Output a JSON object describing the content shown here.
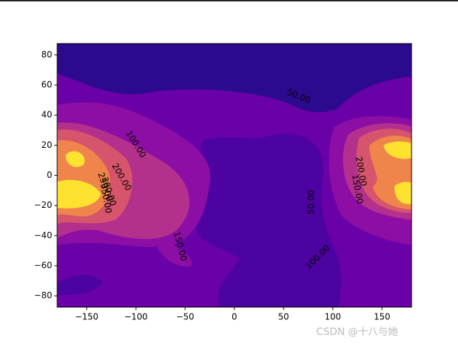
{
  "chart_data": {
    "type": "contourf",
    "xlim": [
      -180,
      180
    ],
    "ylim": [
      -87.5,
      87.5
    ],
    "xticks": [
      {
        "value": -150,
        "label": "−150"
      },
      {
        "value": -100,
        "label": "−100"
      },
      {
        "value": -50,
        "label": "−50"
      },
      0,
      50,
      100,
      150
    ],
    "yticks": [
      {
        "value": -80,
        "label": "−80"
      },
      {
        "value": -60,
        "label": "−60"
      },
      {
        "value": -40,
        "label": "−40"
      },
      {
        "value": -20,
        "label": "−20"
      },
      0,
      20,
      40,
      60,
      80
    ],
    "levels": [
      0,
      50,
      100,
      150,
      200,
      250,
      300,
      350
    ],
    "colors": [
      "#2c0a8e",
      "#4d02a2",
      "#6a00a8",
      "#8c0ea4",
      "#b3308c",
      "#d6556d",
      "#f0854c",
      "#fde22f"
    ],
    "contour_labels": [
      {
        "value": 50,
        "label": "50.00",
        "x": 65.3,
        "y": 52.4,
        "angle": 22
      },
      {
        "value": 100,
        "label": "100.00",
        "x": -100.2,
        "y": 20.6,
        "angle": 58
      },
      {
        "value": 200,
        "label": "200.00",
        "x": -114.7,
        "y": -1.2,
        "angle": 60
      },
      {
        "value": 250,
        "label": "250.00",
        "x": -131.4,
        "y": -7.8,
        "angle": 72
      },
      {
        "value": 300,
        "label": "300.00",
        "x": -127.7,
        "y": -10.7,
        "angle": 72
      },
      {
        "value": 350,
        "label": "350.00",
        "x": -130.6,
        "y": -15.4,
        "angle": 80
      },
      {
        "value": 150,
        "label": "150.00",
        "x": -55.2,
        "y": -47.2,
        "angle": 75
      },
      {
        "value": 50,
        "label": "50.00",
        "x": 78.4,
        "y": -17.8,
        "angle": -90
      },
      {
        "value": 100,
        "label": "100.00",
        "x": 84.9,
        "y": -54.3,
        "angle": -45
      },
      {
        "value": 200,
        "label": "200.00",
        "x": 128.5,
        "y": 2.6,
        "angle": 80
      },
      {
        "value": 150,
        "label": "150.00",
        "x": 124.8,
        "y": -9.2,
        "angle": 80
      }
    ]
  },
  "watermark": "CSDN @十八与她"
}
